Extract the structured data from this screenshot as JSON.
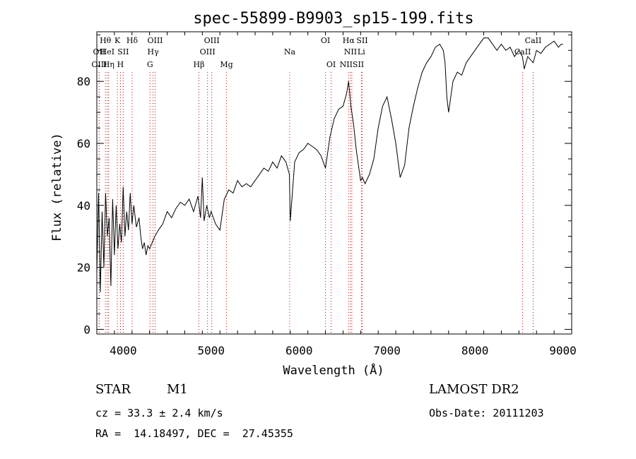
{
  "chart_data": {
    "type": "line",
    "title": "spec-55899-B9903_sp15-199.fits",
    "xlabel": "Wavelength (Å)",
    "ylabel": "Flux (relative)",
    "xlim": [
      3700,
      9100
    ],
    "ylim": [
      -1.5,
      96
    ],
    "x_ticks": [
      4000,
      5000,
      6000,
      7000,
      8000,
      9000
    ],
    "y_ticks": [
      0,
      20,
      40,
      60,
      80
    ],
    "grid": false,
    "series": [
      {
        "x": [
          3700,
          3720,
          3740,
          3760,
          3780,
          3800,
          3820,
          3840,
          3860,
          3880,
          3900,
          3920,
          3940,
          3960,
          3980,
          4000,
          4020,
          4040,
          4060,
          4080,
          4100,
          4120,
          4150,
          4180,
          4200,
          4220,
          4240,
          4260,
          4280,
          4300,
          4330,
          4360,
          4400,
          4450,
          4500,
          4550,
          4600,
          4650,
          4700,
          4750,
          4800,
          4850,
          4880,
          4900,
          4920,
          4950,
          4980,
          5000,
          5050,
          5100,
          5150,
          5200,
          5250,
          5300,
          5350,
          5400,
          5450,
          5500,
          5550,
          5600,
          5650,
          5700,
          5750,
          5800,
          5850,
          5890,
          5900,
          5950,
          6000,
          6050,
          6100,
          6150,
          6200,
          6250,
          6300,
          6350,
          6400,
          6450,
          6500,
          6540,
          6563,
          6590,
          6620,
          6650,
          6680,
          6700,
          6720,
          6750,
          6800,
          6850,
          6900,
          6950,
          7000,
          7050,
          7100,
          7150,
          7200,
          7250,
          7300,
          7350,
          7400,
          7450,
          7500,
          7550,
          7600,
          7640,
          7660,
          7680,
          7700,
          7750,
          7800,
          7850,
          7900,
          7950,
          8000,
          8050,
          8100,
          8150,
          8200,
          8250,
          8300,
          8350,
          8400,
          8450,
          8500,
          8540,
          8560,
          8600,
          8662,
          8700,
          8750,
          8800,
          8850,
          8900,
          8950,
          8980,
          9000
        ],
        "y": [
          18,
          44,
          12,
          38,
          20,
          44,
          30,
          36,
          14,
          42,
          24,
          40,
          26,
          34,
          28,
          46,
          30,
          38,
          32,
          44,
          34,
          40,
          33,
          36,
          30,
          26,
          28,
          24,
          27,
          26,
          28,
          30,
          32,
          34,
          38,
          36,
          39,
          41,
          40,
          42,
          38,
          43,
          36,
          49,
          35,
          40,
          36,
          38,
          34,
          32,
          42,
          45,
          44,
          48,
          46,
          47,
          46,
          48,
          50,
          52,
          51,
          54,
          52,
          56,
          54,
          50,
          35,
          54,
          57,
          58,
          60,
          59,
          58,
          56,
          52,
          62,
          68,
          71,
          72,
          76,
          80,
          72,
          66,
          58,
          52,
          48,
          49,
          47,
          50,
          55,
          65,
          72,
          75,
          68,
          60,
          49,
          53,
          65,
          72,
          78,
          83,
          86,
          88,
          91,
          92,
          90,
          86,
          75,
          70,
          80,
          83,
          82,
          86,
          88,
          90,
          92,
          94,
          94,
          92,
          90,
          92,
          90,
          91,
          88,
          90,
          88,
          84,
          88,
          86,
          90,
          89,
          91,
          92,
          93,
          91,
          92,
          92
        ]
      }
    ],
    "spectral_lines": [
      {
        "name": "OII",
        "wavelength": 3727,
        "row": 1
      },
      {
        "name": "OIII",
        "wavelength": 3727,
        "row": 2
      },
      {
        "name": "Hθ",
        "wavelength": 3798,
        "row": 0
      },
      {
        "name": "HeI",
        "wavelength": 3820,
        "row": 1
      },
      {
        "name": "Hη",
        "wavelength": 3835,
        "row": 2
      },
      {
        "name": "K",
        "wavelength": 3934,
        "row": 0
      },
      {
        "name": "SII",
        "wavelength": 4000,
        "row": 1
      },
      {
        "name": "H",
        "wavelength": 3969,
        "row": 2
      },
      {
        "name": "Hδ",
        "wavelength": 4102,
        "row": 0
      },
      {
        "name": "OIII",
        "wavelength": 4363,
        "row": 0
      },
      {
        "name": "Hγ",
        "wavelength": 4340,
        "row": 1
      },
      {
        "name": "G",
        "wavelength": 4305,
        "row": 2
      },
      {
        "name": "OIII",
        "wavelength": 5007,
        "row": 0
      },
      {
        "name": "OIII",
        "wavelength": 4959,
        "row": 1
      },
      {
        "name": "Hβ",
        "wavelength": 4861,
        "row": 2
      },
      {
        "name": "Mg",
        "wavelength": 5175,
        "row": 2
      },
      {
        "name": "Na",
        "wavelength": 5893,
        "row": 1
      },
      {
        "name": "OI",
        "wavelength": 6300,
        "row": 0
      },
      {
        "name": "OI",
        "wavelength": 6364,
        "row": 2
      },
      {
        "name": "Hα",
        "wavelength": 6563,
        "row": 0
      },
      {
        "name": "SII",
        "wavelength": 6717,
        "row": 0
      },
      {
        "name": "NII",
        "wavelength": 6584,
        "row": 1
      },
      {
        "name": "Li",
        "wavelength": 6708,
        "row": 1
      },
      {
        "name": "NIISII",
        "wavelength": 6600,
        "row": 2
      },
      {
        "name": "CaII",
        "wavelength": 8662,
        "row": 0
      },
      {
        "name": "CaII",
        "wavelength": 8542,
        "row": 1
      }
    ]
  },
  "info": {
    "object_type": "STAR",
    "subclass": "M1",
    "survey": "LAMOST DR2",
    "cz": "cz = 33.3 ± 2.4 km/s",
    "obs_date": "Obs-Date: 20111203",
    "coords": "RA =  14.18497, DEC =  27.45355"
  },
  "colors": {
    "line_marker": "#cc0000",
    "spectrum": "#000000"
  }
}
